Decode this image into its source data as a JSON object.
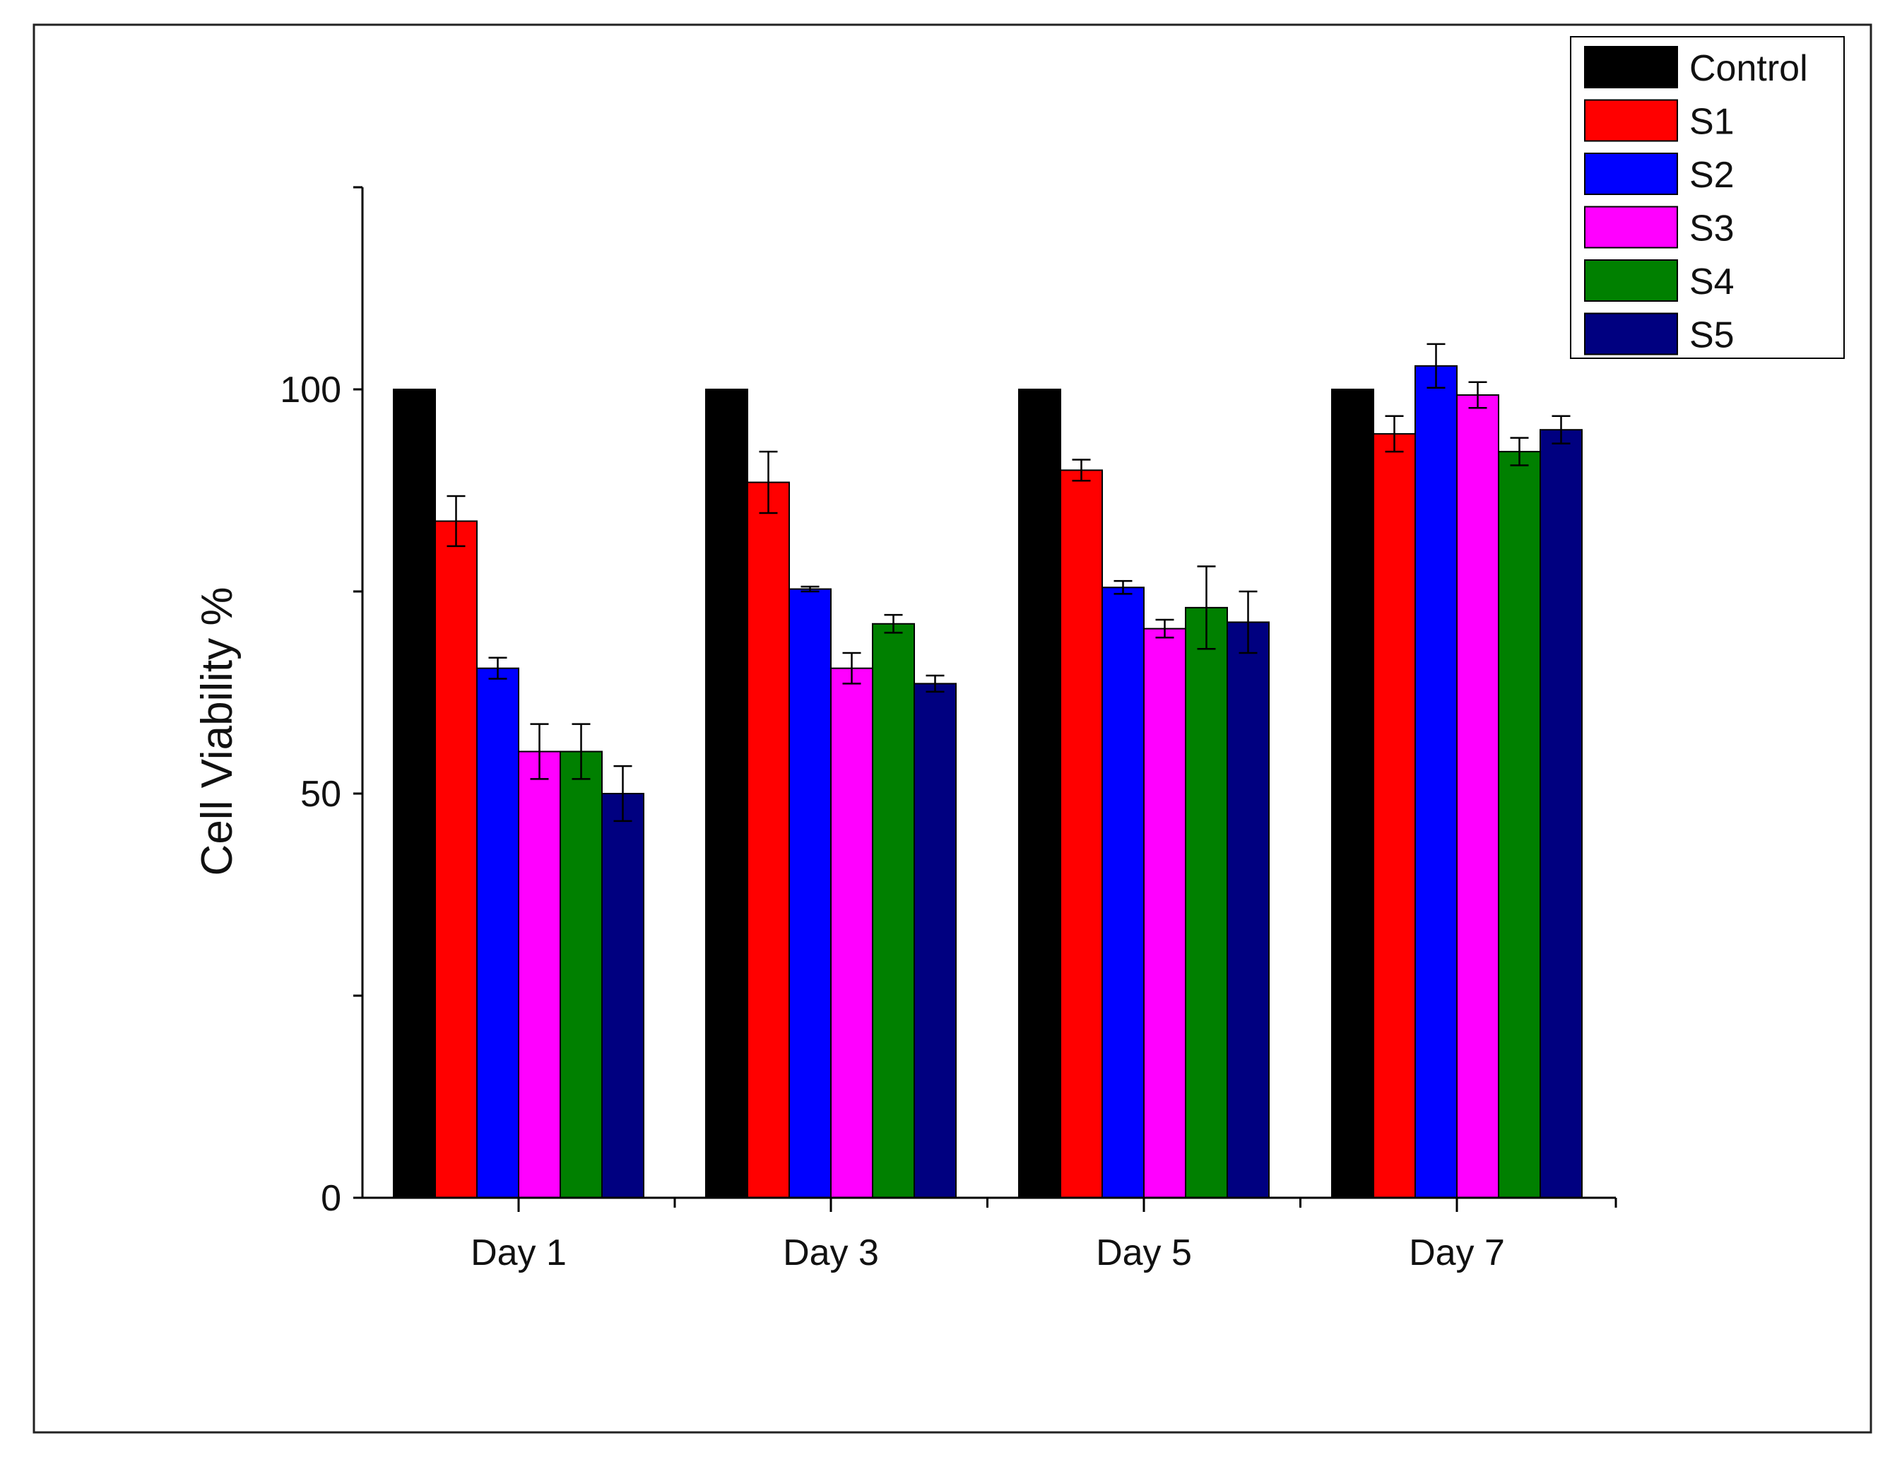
{
  "chart_data": {
    "type": "bar",
    "title": "",
    "xlabel": "",
    "ylabel": "Cell Viability %",
    "ylim": [
      0,
      125
    ],
    "yticks": [
      0,
      50,
      100
    ],
    "yticks_labels": [
      "0",
      "50",
      "100"
    ],
    "yminor_ticks": [
      25,
      75,
      125
    ],
    "grid": false,
    "legend_position": "top-right",
    "categories": [
      "Day 1",
      "Day 3",
      "Day 5",
      "Day 7"
    ],
    "series": [
      {
        "name": "Control",
        "color": "#000000",
        "values": [
          100,
          100,
          100,
          100
        ],
        "errors": [
          0,
          0,
          0,
          0
        ]
      },
      {
        "name": "S1",
        "color": "#ff0000",
        "values": [
          83.7,
          88.5,
          90,
          94.5
        ],
        "errors": [
          3.1,
          3.8,
          1.3,
          2.2
        ]
      },
      {
        "name": "S2",
        "color": "#0000ff",
        "values": [
          65.5,
          75.3,
          75.5,
          102.9
        ],
        "errors": [
          1.3,
          0.3,
          0.8,
          2.7
        ]
      },
      {
        "name": "S3",
        "color": "#ff00ff",
        "values": [
          55.2,
          65.5,
          70.4,
          99.3
        ],
        "errors": [
          3.4,
          1.9,
          1.1,
          1.6
        ]
      },
      {
        "name": "S4",
        "color": "#008000",
        "values": [
          55.2,
          71,
          73,
          92.3
        ],
        "errors": [
          3.4,
          1.1,
          5.1,
          1.7
        ]
      },
      {
        "name": "S5",
        "color": "#000080",
        "values": [
          50,
          63.6,
          71.2,
          95
        ],
        "errors": [
          3.4,
          1,
          3.8,
          1.7
        ]
      }
    ]
  }
}
